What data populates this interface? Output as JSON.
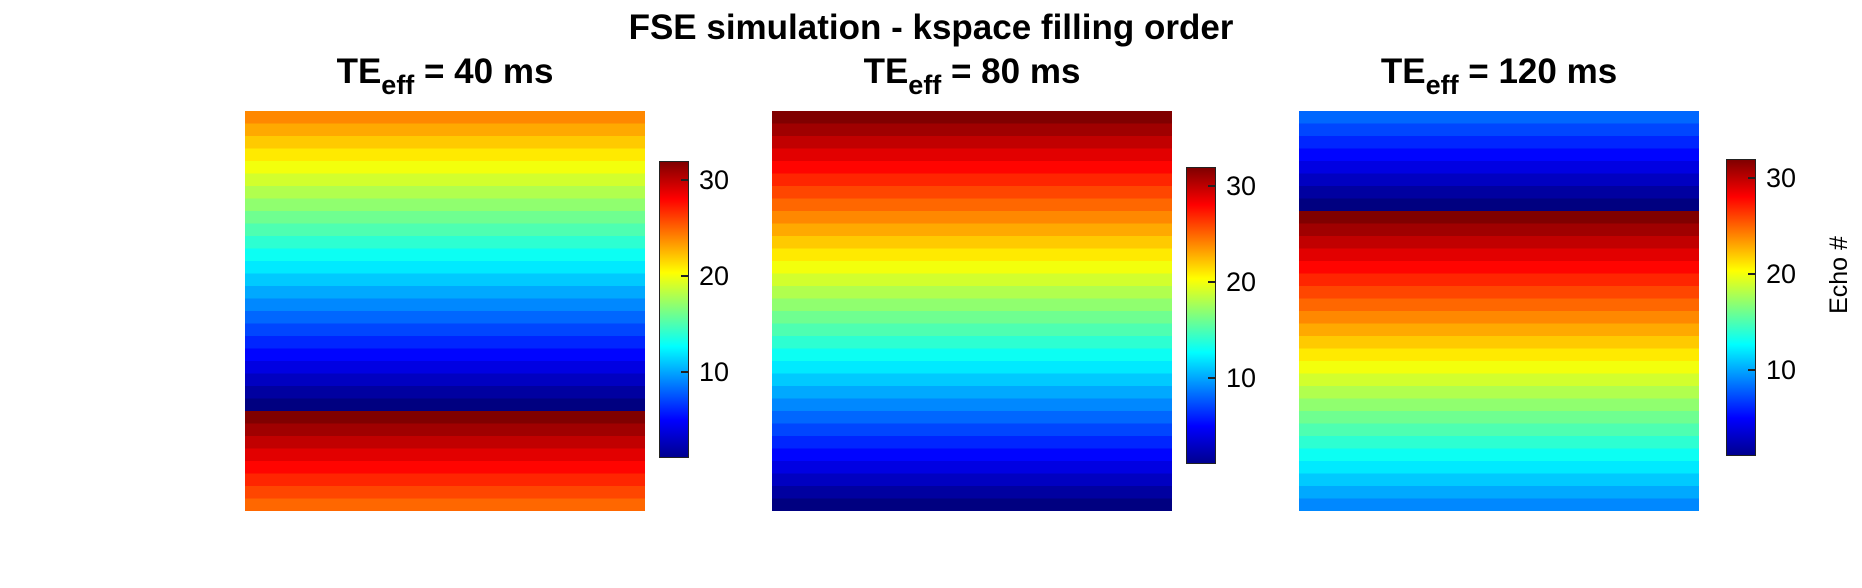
{
  "figure": {
    "title": "FSE simulation - kspace filling order"
  },
  "chart_data": [
    {
      "type": "heatmap",
      "title_main": "TE",
      "title_sub": "eff",
      "title_rest": " = 40 ms",
      "rows_top_to_bottom": [
        24,
        23,
        22,
        21,
        20,
        19,
        18,
        17,
        16,
        15,
        14,
        13,
        12,
        11,
        10,
        9,
        8,
        7,
        6,
        5,
        4,
        3,
        2,
        1,
        32,
        31,
        30,
        29,
        28,
        27,
        26,
        25
      ],
      "colorbar": {
        "ticks": [
          10,
          20,
          30
        ],
        "range": [
          1,
          32
        ],
        "label": ""
      }
    },
    {
      "type": "heatmap",
      "title_main": "TE",
      "title_sub": "eff",
      "title_rest": " = 80 ms",
      "rows_top_to_bottom": [
        32,
        31,
        30,
        29,
        28,
        27,
        26,
        25,
        24,
        23,
        22,
        21,
        20,
        19,
        18,
        17,
        16,
        15,
        14,
        13,
        12,
        11,
        10,
        9,
        8,
        7,
        6,
        5,
        4,
        3,
        2,
        1
      ],
      "colorbar": {
        "ticks": [
          10,
          20,
          30
        ],
        "range": [
          1,
          32
        ],
        "label": ""
      }
    },
    {
      "type": "heatmap",
      "title_main": "TE",
      "title_sub": "eff",
      "title_rest": " = 120 ms",
      "rows_top_to_bottom": [
        8,
        7,
        6,
        5,
        4,
        3,
        2,
        1,
        32,
        31,
        30,
        29,
        28,
        27,
        26,
        25,
        24,
        23,
        22,
        21,
        20,
        19,
        18,
        17,
        16,
        15,
        14,
        13,
        12,
        11,
        10,
        9
      ],
      "colorbar": {
        "ticks": [
          10,
          20,
          30
        ],
        "range": [
          1,
          32
        ],
        "label": "Echo #"
      }
    }
  ]
}
